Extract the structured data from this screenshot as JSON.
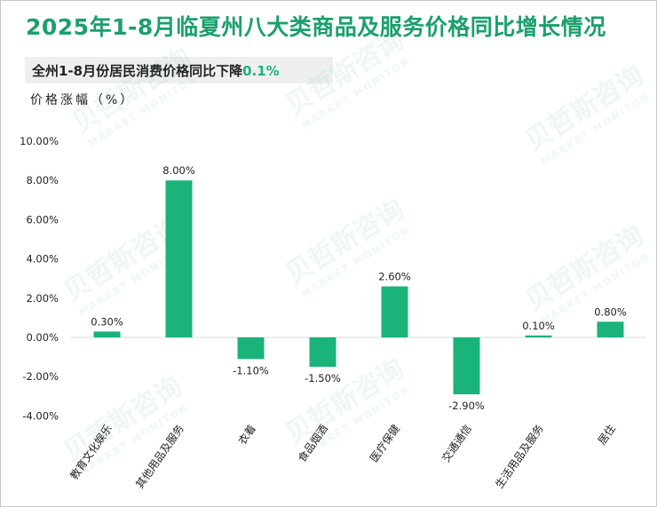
{
  "title": "2025年1-8月临夏州八大类商品及服务价格同比增长情况",
  "subtitle": {
    "prefix": "全州1-8月份居民消费价格同比下降",
    "value": "0.1%"
  },
  "watermark": {
    "cn": "贝哲斯咨询",
    "en": "MARKET MONITOR"
  },
  "colors": {
    "title": "#1aa06b",
    "bar": "#1ab37a",
    "highlight": "#1ab37a"
  },
  "chart_data": {
    "type": "bar",
    "ylabel": "价格涨幅（%）",
    "categories": [
      "教育文化娱乐",
      "其他用品及服务",
      "衣着",
      "食品烟酒",
      "医疗保健",
      "交通通信",
      "生活用品及服务",
      "居住"
    ],
    "values": [
      0.3,
      8.0,
      -1.1,
      -1.5,
      2.6,
      -2.9,
      0.1,
      0.8
    ],
    "value_labels": [
      "0.30%",
      "8.00%",
      "-1.10%",
      "-1.50%",
      "2.60%",
      "-2.90%",
      "0.10%",
      "0.80%"
    ],
    "yticks": [
      "10.00%",
      "8.00%",
      "6.00%",
      "4.00%",
      "2.00%",
      "0.00%",
      "-2.00%",
      "-4.00%"
    ],
    "ytick_values": [
      10,
      8,
      6,
      4,
      2,
      0,
      -2,
      -4
    ],
    "ylim": [
      -4,
      10
    ],
    "grid": false,
    "legend": "none"
  }
}
